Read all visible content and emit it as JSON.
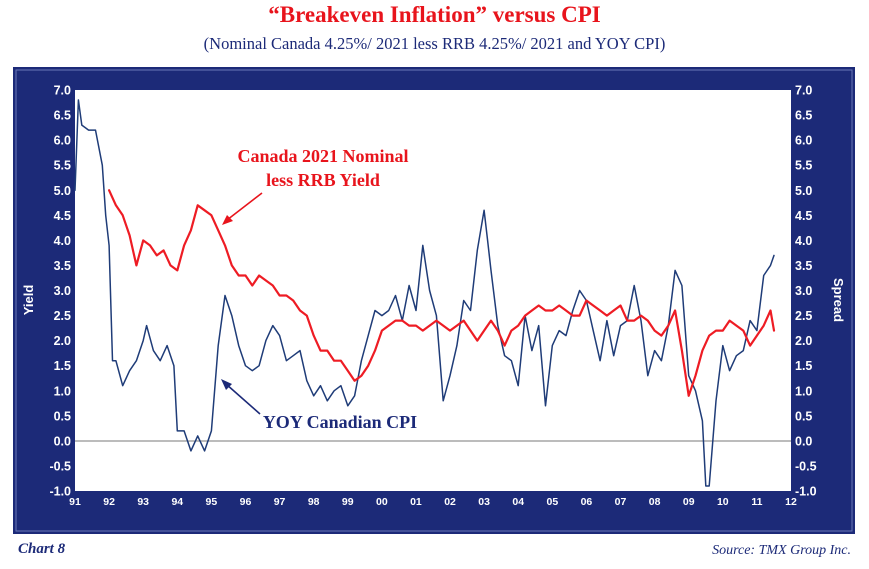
{
  "header": {
    "title": "“Breakeven Inflation” versus CPI",
    "subtitle": "(Nominal Canada 4.25%/ 2021 less RRB 4.25%/ 2021 and YOY CPI)"
  },
  "footer": {
    "chart_label": "Chart 8",
    "source": "Source: TMX Group Inc."
  },
  "colors": {
    "frame": "#1c2a78",
    "plot_background": "#ffffff",
    "breakeven_line": "#ee1c24",
    "cpi_line": "#1f3c78"
  },
  "chart_data": {
    "type": "line",
    "title": "“Breakeven Inflation” versus CPI",
    "subtitle": "(Nominal Canada 4.25%/ 2021 less RRB 4.25%/ 2021 and YOY CPI)",
    "ylabel_left": "Yield",
    "ylabel_right": "Spread",
    "ylim": [
      -1.0,
      7.0
    ],
    "yticks": [
      "7.0",
      "6.5",
      "6.0",
      "5.5",
      "5.0",
      "4.5",
      "4.0",
      "3.5",
      "3.0",
      "2.5",
      "2.0",
      "1.5",
      "1.0",
      "0.5",
      "0.0",
      "-0.5",
      "-1.0"
    ],
    "xlim": [
      1991,
      2012
    ],
    "xticks": [
      "91",
      "92",
      "93",
      "94",
      "95",
      "96",
      "97",
      "98",
      "99",
      "00",
      "01",
      "02",
      "03",
      "04",
      "05",
      "06",
      "07",
      "08",
      "09",
      "10",
      "11",
      "12"
    ],
    "zero_line": true,
    "grid": false,
    "annotations": [
      {
        "lines": [
          "Canada 2021  Nominal",
          "less RRB Yield"
        ],
        "series": "breakeven"
      },
      {
        "lines": [
          "YOY Canadian CPI"
        ],
        "series": "cpi"
      }
    ],
    "series": [
      {
        "key": "breakeven",
        "x": [
          1992.0,
          1992.2,
          1992.4,
          1992.6,
          1992.8,
          1993.0,
          1993.2,
          1993.4,
          1993.6,
          1993.8,
          1994.0,
          1994.2,
          1994.4,
          1994.6,
          1994.8,
          1995.0,
          1995.2,
          1995.4,
          1995.6,
          1995.8,
          1996.0,
          1996.2,
          1996.4,
          1996.6,
          1996.8,
          1997.0,
          1997.2,
          1997.4,
          1997.6,
          1997.8,
          1998.0,
          1998.2,
          1998.4,
          1998.6,
          1998.8,
          1999.0,
          1999.2,
          1999.4,
          1999.6,
          1999.8,
          2000.0,
          2000.2,
          2000.4,
          2000.6,
          2000.8,
          2001.0,
          2001.2,
          2001.4,
          2001.6,
          2001.8,
          2002.0,
          2002.2,
          2002.4,
          2002.6,
          2002.8,
          2003.0,
          2003.2,
          2003.4,
          2003.6,
          2003.8,
          2004.0,
          2004.2,
          2004.4,
          2004.6,
          2004.8,
          2005.0,
          2005.2,
          2005.4,
          2005.6,
          2005.8,
          2006.0,
          2006.2,
          2006.4,
          2006.6,
          2006.8,
          2007.0,
          2007.2,
          2007.4,
          2007.6,
          2007.8,
          2008.0,
          2008.2,
          2008.4,
          2008.6,
          2008.8,
          2009.0,
          2009.2,
          2009.4,
          2009.6,
          2009.8,
          2010.0,
          2010.2,
          2010.4,
          2010.6,
          2010.8,
          2011.0,
          2011.2,
          2011.4,
          2011.5
        ],
        "values": [
          5.0,
          4.7,
          4.5,
          4.1,
          3.5,
          4.0,
          3.9,
          3.7,
          3.8,
          3.5,
          3.4,
          3.9,
          4.2,
          4.7,
          4.6,
          4.5,
          4.2,
          3.9,
          3.5,
          3.3,
          3.3,
          3.1,
          3.3,
          3.2,
          3.1,
          2.9,
          2.9,
          2.8,
          2.6,
          2.5,
          2.1,
          1.8,
          1.8,
          1.6,
          1.6,
          1.4,
          1.2,
          1.3,
          1.5,
          1.8,
          2.2,
          2.3,
          2.4,
          2.4,
          2.3,
          2.3,
          2.2,
          2.3,
          2.4,
          2.3,
          2.2,
          2.3,
          2.4,
          2.2,
          2.0,
          2.2,
          2.4,
          2.2,
          1.9,
          2.2,
          2.3,
          2.5,
          2.6,
          2.7,
          2.6,
          2.6,
          2.7,
          2.6,
          2.5,
          2.5,
          2.8,
          2.7,
          2.6,
          2.5,
          2.6,
          2.7,
          2.4,
          2.4,
          2.5,
          2.4,
          2.2,
          2.1,
          2.3,
          2.6,
          1.8,
          0.9,
          1.3,
          1.8,
          2.1,
          2.2,
          2.2,
          2.4,
          2.3,
          2.2,
          1.9,
          2.1,
          2.3,
          2.6,
          2.2
        ]
      },
      {
        "key": "cpi",
        "x": [
          1991.0,
          1991.1,
          1991.2,
          1991.4,
          1991.6,
          1991.8,
          1991.9,
          1992.0,
          1992.1,
          1992.2,
          1992.4,
          1992.6,
          1992.8,
          1993.0,
          1993.1,
          1993.3,
          1993.5,
          1993.7,
          1993.9,
          1994.0,
          1994.2,
          1994.4,
          1994.6,
          1994.8,
          1995.0,
          1995.2,
          1995.4,
          1995.6,
          1995.8,
          1996.0,
          1996.2,
          1996.4,
          1996.6,
          1996.8,
          1997.0,
          1997.2,
          1997.4,
          1997.6,
          1997.8,
          1998.0,
          1998.2,
          1998.4,
          1998.6,
          1998.8,
          1999.0,
          1999.2,
          1999.4,
          1999.6,
          1999.8,
          2000.0,
          2000.2,
          2000.4,
          2000.6,
          2000.8,
          2001.0,
          2001.2,
          2001.4,
          2001.6,
          2001.8,
          2002.0,
          2002.2,
          2002.4,
          2002.6,
          2002.8,
          2003.0,
          2003.1,
          2003.2,
          2003.4,
          2003.6,
          2003.8,
          2004.0,
          2004.2,
          2004.4,
          2004.6,
          2004.8,
          2005.0,
          2005.2,
          2005.4,
          2005.6,
          2005.8,
          2006.0,
          2006.2,
          2006.4,
          2006.6,
          2006.8,
          2007.0,
          2007.2,
          2007.4,
          2007.6,
          2007.8,
          2008.0,
          2008.2,
          2008.4,
          2008.6,
          2008.8,
          2009.0,
          2009.2,
          2009.4,
          2009.5,
          2009.6,
          2009.8,
          2010.0,
          2010.2,
          2010.4,
          2010.6,
          2010.8,
          2011.0,
          2011.2,
          2011.4,
          2011.5
        ],
        "values": [
          5.0,
          6.8,
          6.3,
          6.2,
          6.2,
          5.5,
          4.5,
          3.9,
          1.6,
          1.6,
          1.1,
          1.4,
          1.6,
          2.0,
          2.3,
          1.8,
          1.6,
          1.9,
          1.5,
          0.2,
          0.2,
          -0.2,
          0.1,
          -0.2,
          0.2,
          1.9,
          2.9,
          2.5,
          1.9,
          1.5,
          1.4,
          1.5,
          2.0,
          2.3,
          2.1,
          1.6,
          1.7,
          1.8,
          1.2,
          0.9,
          1.1,
          0.8,
          1.0,
          1.1,
          0.7,
          0.9,
          1.6,
          2.1,
          2.6,
          2.5,
          2.6,
          2.9,
          2.4,
          3.1,
          2.6,
          3.9,
          3.0,
          2.5,
          0.8,
          1.3,
          1.9,
          2.8,
          2.6,
          3.8,
          4.6,
          4.0,
          3.4,
          2.3,
          1.7,
          1.6,
          1.1,
          2.5,
          1.8,
          2.3,
          0.7,
          1.9,
          2.2,
          2.1,
          2.6,
          3.0,
          2.8,
          2.2,
          1.6,
          2.4,
          1.7,
          2.3,
          2.4,
          3.1,
          2.4,
          1.3,
          1.8,
          1.6,
          2.3,
          3.4,
          3.1,
          1.3,
          1.0,
          0.4,
          -0.9,
          -0.9,
          0.8,
          1.9,
          1.4,
          1.7,
          1.8,
          2.4,
          2.2,
          3.3,
          3.5,
          3.7
        ]
      }
    ]
  }
}
